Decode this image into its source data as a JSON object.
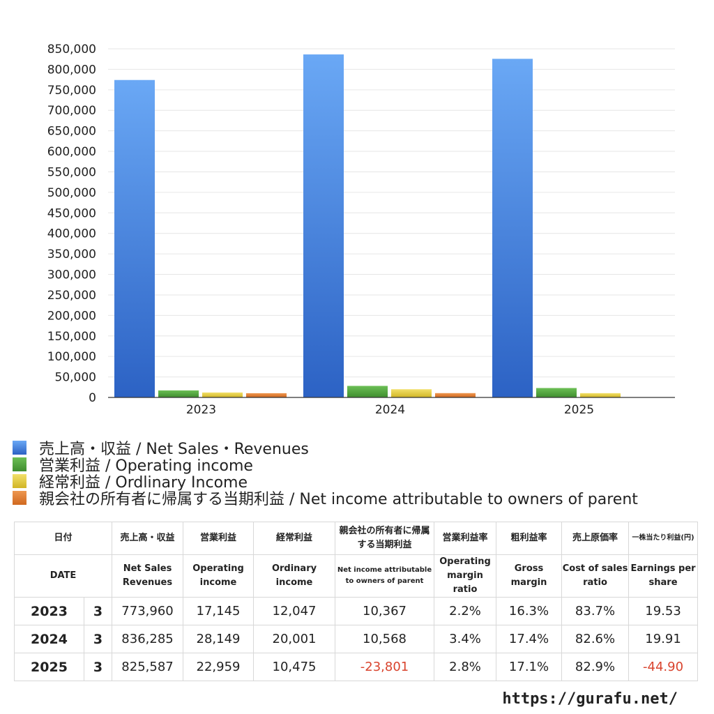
{
  "chart_data": {
    "type": "bar",
    "categories": [
      "2023",
      "2024",
      "2025"
    ],
    "series": [
      {
        "name": "売上高・収益 / Net Sales・Revenues",
        "values": [
          773960,
          836285,
          825587
        ],
        "color_top": "#6aa8f5",
        "color_bottom": "#2c62c4"
      },
      {
        "name": "営業利益 / Operating income",
        "values": [
          17145,
          28149,
          22959
        ],
        "color_top": "#6cbf55",
        "color_bottom": "#3f8d2f"
      },
      {
        "name": "経常利益 / Ordlinary Income",
        "values": [
          12047,
          20001,
          10475
        ],
        "color_top": "#f2e06a",
        "color_bottom": "#d1b525"
      },
      {
        "name": "親会社の所有者に帰属する当期利益 / Net income attributable to owners of parent",
        "values": [
          10367,
          10568,
          -23801
        ],
        "color_top": "#ee9750",
        "color_bottom": "#d0681f"
      }
    ],
    "ylim": [
      0,
      850000
    ],
    "yticks": [
      "0",
      "50,000",
      "100,000",
      "150,000",
      "200,000",
      "250,000",
      "300,000",
      "350,000",
      "400,000",
      "450,000",
      "500,000",
      "550,000",
      "600,000",
      "650,000",
      "700,000",
      "750,000",
      "800,000",
      "850,000"
    ],
    "ytick_values": [
      0,
      50000,
      100000,
      150000,
      200000,
      250000,
      300000,
      350000,
      400000,
      450000,
      500000,
      550000,
      600000,
      650000,
      700000,
      750000,
      800000,
      850000
    ],
    "grid": true,
    "legend_position": "bottom"
  },
  "table": {
    "headers_ja": [
      "日付",
      "売上高・収益",
      "営業利益",
      "経常利益",
      "親会社の所有者に帰属する当期利益",
      "営業利益率",
      "粗利益率",
      "売上原価率",
      "一株当たり利益(円)"
    ],
    "headers_en": [
      "DATE",
      "Net Sales Revenues",
      "Operating income",
      "Ordinary income",
      "Net income attributable to owners of parent",
      "Operating margin ratio",
      "Gross margin",
      "Cost of sales ratio",
      "Earnings per share"
    ],
    "rows": [
      {
        "year": "2023",
        "month": "3",
        "cells": [
          "773,960",
          "17,145",
          "12,047",
          "10,367",
          "2.2%",
          "16.3%",
          "83.7%",
          "19.53"
        ],
        "negative": [
          false,
          false,
          false,
          false,
          false,
          false,
          false,
          false
        ]
      },
      {
        "year": "2024",
        "month": "3",
        "cells": [
          "836,285",
          "28,149",
          "20,001",
          "10,568",
          "3.4%",
          "17.4%",
          "82.6%",
          "19.91"
        ],
        "negative": [
          false,
          false,
          false,
          false,
          false,
          false,
          false,
          false
        ]
      },
      {
        "year": "2025",
        "month": "3",
        "cells": [
          "825,587",
          "22,959",
          "10,475",
          "-23,801",
          "2.8%",
          "17.1%",
          "82.9%",
          "-44.90"
        ],
        "negative": [
          false,
          false,
          false,
          true,
          false,
          false,
          false,
          true
        ]
      }
    ]
  },
  "footer": {
    "url": "https://gurafu.net/"
  }
}
